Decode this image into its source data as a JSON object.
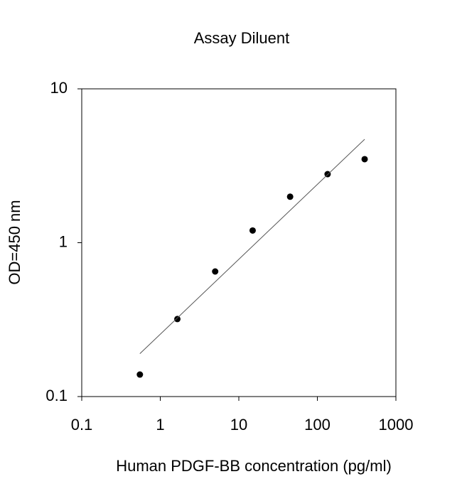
{
  "chart_data": {
    "type": "scatter",
    "title": "Assay Diluent",
    "x_label": "Human PDGF-BB concentration (pg/ml)",
    "y_label": "OD=450 nm",
    "x_scale": "log",
    "y_scale": "log",
    "xlim": [
      0.1,
      1000
    ],
    "ylim": [
      0.1,
      10
    ],
    "xticks": [
      0.1,
      1,
      10,
      100,
      1000
    ],
    "yticks": [
      0.1,
      1,
      10
    ],
    "series": [
      {
        "type": "scatter",
        "color": "#000000",
        "x": [
          0.55,
          1.65,
          5,
          15,
          45,
          135,
          400
        ],
        "values": [
          0.139,
          0.319,
          0.65,
          1.2,
          1.99,
          2.79,
          3.49
        ]
      },
      {
        "type": "line",
        "color": "#555555",
        "x": [
          0.55,
          400
        ],
        "values": [
          0.19,
          4.7
        ]
      }
    ]
  }
}
